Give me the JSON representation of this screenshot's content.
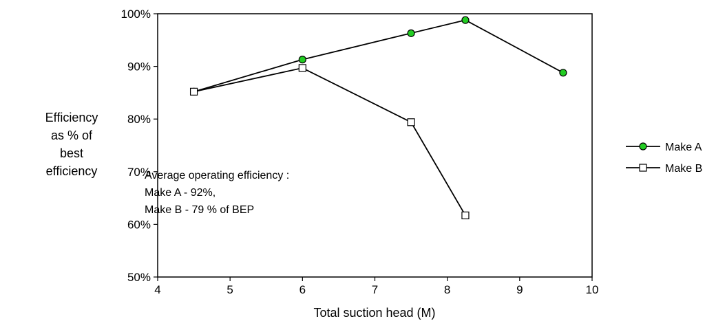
{
  "chart_data": {
    "type": "line",
    "xlabel": "Total suction head  (M)",
    "ylabel_lines": [
      "Efficiency",
      "as % of",
      "best",
      "efficiency"
    ],
    "xlim": [
      4,
      10
    ],
    "ylim": [
      50,
      100
    ],
    "x_ticks": [
      4,
      5,
      6,
      7,
      8,
      9,
      10
    ],
    "x_tick_labels": [
      "4",
      "5",
      "6",
      "7",
      "8",
      "9",
      "10"
    ],
    "y_ticks": [
      50,
      60,
      70,
      80,
      90,
      100
    ],
    "y_tick_labels": [
      "50%",
      "60%",
      "70%",
      "80%",
      "90%",
      "100%"
    ],
    "grid": false,
    "legend_position": "right",
    "series": [
      {
        "name": "Make A",
        "marker": "circle",
        "color": "#22cc22",
        "x": [
          4.5,
          6,
          7.5,
          8.25,
          9.6
        ],
        "y": [
          85.2,
          91.3,
          96.3,
          98.8,
          88.8
        ]
      },
      {
        "name": "Make B",
        "marker": "square",
        "color": "#ffffff",
        "x": [
          4.5,
          6,
          7.5,
          8.25
        ],
        "y": [
          85.2,
          89.7,
          79.4,
          61.7
        ]
      }
    ],
    "annotation_lines": [
      "Average operating efficiency :",
      "Make A  -  92%,",
      "Make B  -  79 % of  BEP"
    ]
  }
}
